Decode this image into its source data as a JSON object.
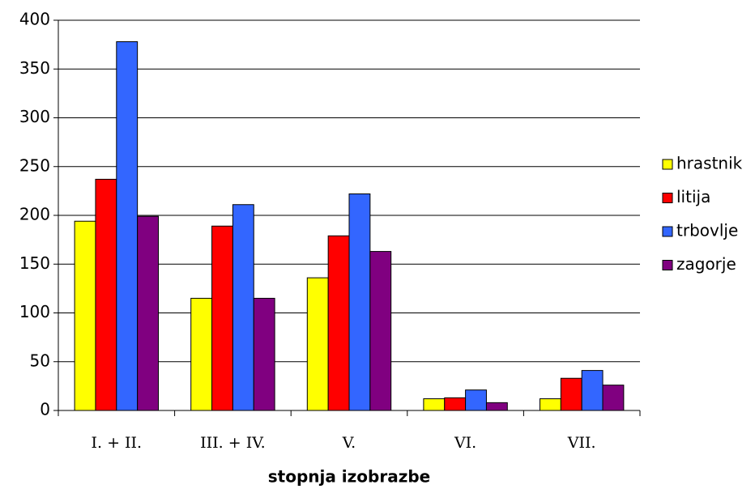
{
  "chart_data": {
    "type": "bar",
    "xlabel": "stopnja izobrazbe",
    "categories": [
      "I. + II.",
      "III. + IV.",
      "V.",
      "VI.",
      "VII."
    ],
    "series": [
      {
        "name": "hrastnik",
        "color": "#ffff00",
        "values": [
          194,
          115,
          136,
          12,
          12
        ]
      },
      {
        "name": "litija",
        "color": "#ff0000",
        "values": [
          237,
          189,
          179,
          13,
          33
        ]
      },
      {
        "name": "trbovlje",
        "color": "#3366ff",
        "values": [
          378,
          211,
          222,
          21,
          41
        ]
      },
      {
        "name": "zagorje",
        "color": "#800080",
        "values": [
          199,
          115,
          163,
          8,
          26
        ]
      }
    ],
    "ylim": [
      0,
      400
    ],
    "yticks": [
      0,
      50,
      100,
      150,
      200,
      250,
      300,
      350,
      400
    ],
    "grid": true,
    "legend": "right"
  }
}
